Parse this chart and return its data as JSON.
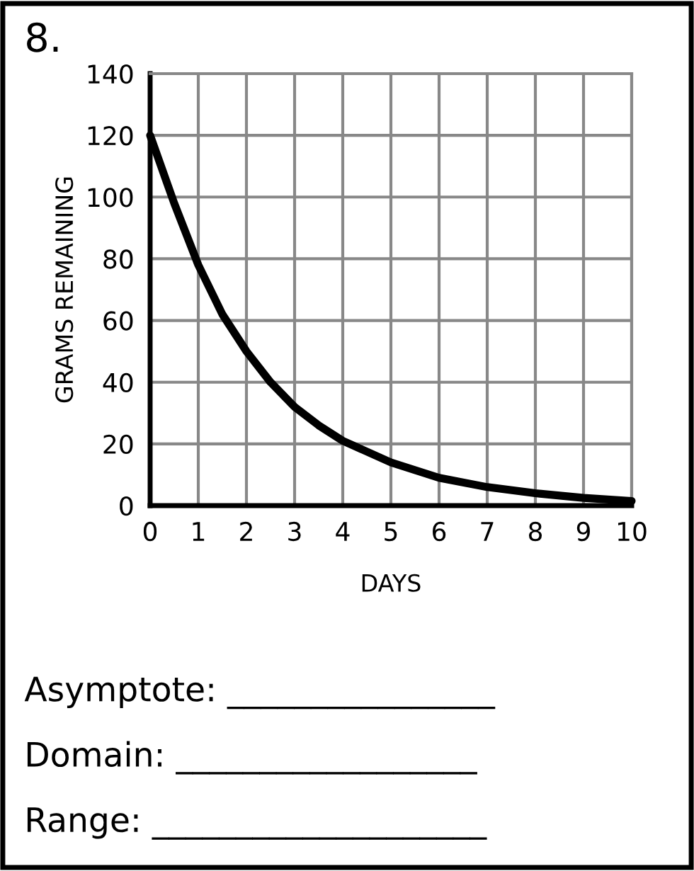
{
  "chart_data": {
    "type": "line",
    "title": "8.",
    "xlabel": "DAYS",
    "ylabel": "GRAMS REMAINING",
    "series": [
      {
        "color": "#000000",
        "x": [
          0,
          0.5,
          1,
          1.5,
          2,
          2.5,
          3,
          3.5,
          4,
          5,
          6,
          7,
          8,
          9,
          10
        ],
        "values": [
          120,
          98,
          78,
          62,
          50,
          40,
          32,
          26,
          21,
          14,
          9,
          6,
          4,
          2.5,
          1.5
        ]
      }
    ],
    "xlim": [
      0,
      10
    ],
    "ylim": [
      0,
      140
    ],
    "xticks": [
      0,
      1,
      2,
      3,
      4,
      5,
      6,
      7,
      8,
      9,
      10
    ],
    "yticks": [
      0,
      20,
      40,
      60,
      80,
      100,
      120,
      140
    ],
    "grid": true,
    "marker": "none",
    "line_style": "solid",
    "legend": false,
    "annotations": [
      "Asymptote: ________________",
      "Domain: __________________",
      "Range: ____________________"
    ]
  }
}
